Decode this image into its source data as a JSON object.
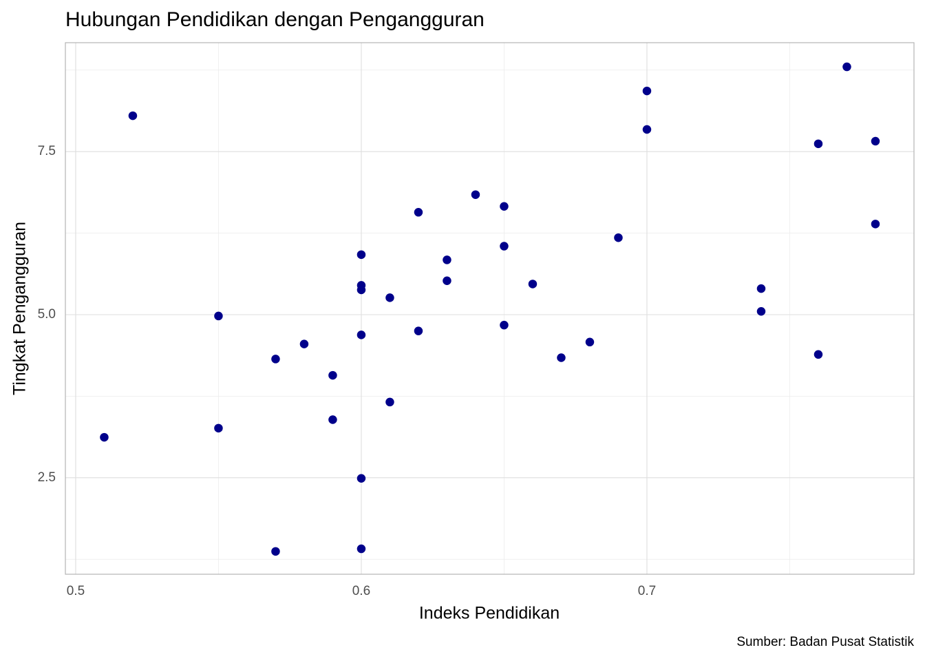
{
  "chart_data": {
    "type": "scatter",
    "title": "Hubungan Pendidikan dengan Pengangguran",
    "x_label": "Indeks Pendidikan",
    "y_label": "Tingkat Pengangguran",
    "caption": "Sumber: Badan Pusat Statistik",
    "color": "#00008b",
    "grid": true,
    "xlim": [
      0.4964,
      0.7935
    ],
    "ylim": [
      1.02,
      9.17
    ],
    "xticks": [
      0.5,
      0.6,
      0.7
    ],
    "yticks": [
      {
        "value": 2.5,
        "label": "2.5"
      },
      {
        "value": 5,
        "label": "5.0"
      },
      {
        "value": 7.5,
        "label": "7.5"
      }
    ],
    "x_minor_ticks": [
      0.55,
      0.65,
      0.75
    ],
    "y_minor_ticks": [
      1.25,
      3.75,
      6.25,
      8.75
    ],
    "x": [
      0.51,
      0.52,
      0.55,
      0.55,
      0.57,
      0.57,
      0.58,
      0.59,
      0.59,
      0.6,
      0.6,
      0.6,
      0.6,
      0.6,
      0.6,
      0.61,
      0.61,
      0.62,
      0.62,
      0.63,
      0.63,
      0.64,
      0.65,
      0.65,
      0.65,
      0.66,
      0.67,
      0.68,
      0.69,
      0.7,
      0.7,
      0.74,
      0.74,
      0.76,
      0.76,
      0.77,
      0.78,
      0.78
    ],
    "values": [
      3.12,
      8.05,
      4.98,
      3.26,
      4.32,
      1.37,
      4.55,
      4.07,
      3.39,
      5.92,
      5.45,
      5.38,
      4.69,
      2.49,
      1.41,
      5.26,
      3.66,
      6.57,
      4.75,
      5.84,
      5.52,
      6.84,
      6.66,
      6.05,
      4.84,
      5.47,
      4.34,
      4.58,
      6.18,
      8.43,
      7.84,
      5.4,
      5.05,
      7.62,
      4.39,
      8.8,
      7.66,
      6.39
    ]
  }
}
